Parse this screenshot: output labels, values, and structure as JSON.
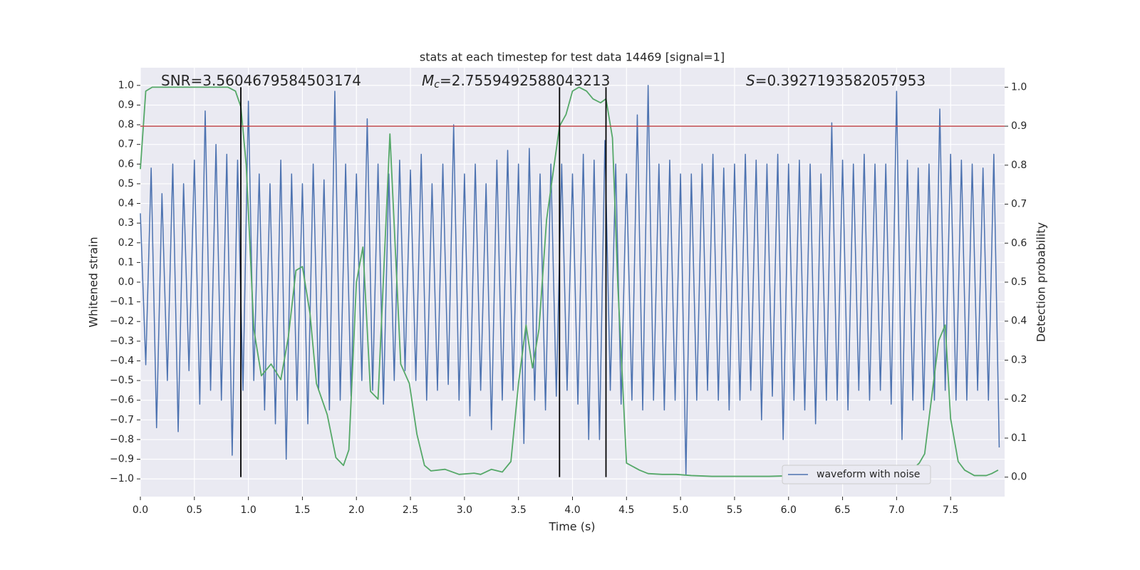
{
  "chart_data": {
    "type": "line",
    "title": "stats at each timestep for test data 14469 [signal=1]",
    "xlabel": "Time (s)",
    "ylabel": "Whitened strain",
    "y2label": "Detection probability",
    "xlim": [
      0,
      8
    ],
    "xticks": [
      {
        "value": 0,
        "label": "0.0"
      },
      0.5,
      {
        "value": 1,
        "label": "1.0"
      },
      1.5,
      {
        "value": 2,
        "label": "2.0"
      },
      2.5,
      {
        "value": 3,
        "label": "3.0"
      },
      3.5,
      {
        "value": 4,
        "label": "4.0"
      },
      4.5,
      {
        "value": 5,
        "label": "5.0"
      },
      5.5,
      {
        "value": 6,
        "label": "6.0"
      },
      6.5,
      {
        "value": 7,
        "label": "7.0"
      },
      7.5
    ],
    "ylim": [
      -1.09,
      1.09
    ],
    "yticks": [
      {
        "value": -1,
        "label": "−1.0"
      },
      {
        "value": -0.9,
        "label": "−0.9"
      },
      {
        "value": -0.8,
        "label": "−0.8"
      },
      {
        "value": -0.7,
        "label": "−0.7"
      },
      {
        "value": -0.6,
        "label": "−0.6"
      },
      {
        "value": -0.5,
        "label": "−0.5"
      },
      {
        "value": -0.4,
        "label": "−0.4"
      },
      {
        "value": -0.3,
        "label": "−0.3"
      },
      {
        "value": -0.2,
        "label": "−0.2"
      },
      {
        "value": -0.1,
        "label": "−0.1"
      },
      {
        "value": 0,
        "label": "0.0"
      },
      0.1,
      0.2,
      0.3,
      0.4,
      0.5,
      0.6,
      0.7,
      0.8,
      0.9,
      {
        "value": 1,
        "label": "1.0"
      }
    ],
    "y2lim": [
      -0.05,
      1.05
    ],
    "y2ticks": [
      {
        "value": 0,
        "label": "0.0"
      },
      0.1,
      0.2,
      0.3,
      0.4,
      0.5,
      0.6,
      0.7,
      0.8,
      0.9,
      {
        "value": 1,
        "label": "1.0"
      }
    ],
    "grid": true,
    "legend": "lower right",
    "series": [
      {
        "name": "waveform with noise",
        "color": "#4c72b0",
        "x": [
          0,
          0.05,
          0.1,
          0.15,
          0.2,
          0.25,
          0.3,
          0.35,
          0.4,
          0.45,
          0.5,
          0.55,
          0.6,
          0.65,
          0.7,
          0.75,
          0.8,
          0.85,
          0.9,
          0.95,
          1,
          1.05,
          1.1,
          1.15,
          1.2,
          1.25,
          1.3,
          1.35,
          1.4,
          1.45,
          1.5,
          1.55,
          1.6,
          1.65,
          1.7,
          1.75,
          1.8,
          1.85,
          1.9,
          1.95,
          2,
          2.05,
          2.1,
          2.15,
          2.2,
          2.25,
          2.3,
          2.35,
          2.4,
          2.45,
          2.5,
          2.55,
          2.6,
          2.65,
          2.7,
          2.75,
          2.8,
          2.85,
          2.9,
          2.95,
          3,
          3.05,
          3.1,
          3.15,
          3.2,
          3.25,
          3.3,
          3.35,
          3.4,
          3.45,
          3.5,
          3.55,
          3.6,
          3.65,
          3.7,
          3.75,
          3.8,
          3.85,
          3.9,
          3.95,
          4,
          4.05,
          4.1,
          4.15,
          4.2,
          4.25,
          4.3,
          4.35,
          4.4,
          4.45,
          4.5,
          4.55,
          4.6,
          4.65,
          4.7,
          4.75,
          4.8,
          4.85,
          4.9,
          4.95,
          5,
          5.05,
          5.1,
          5.15,
          5.2,
          5.25,
          5.3,
          5.35,
          5.4,
          5.45,
          5.5,
          5.55,
          5.6,
          5.65,
          5.7,
          5.75,
          5.8,
          5.85,
          5.9,
          5.95,
          6,
          6.05,
          6.1,
          6.15,
          6.2,
          6.25,
          6.3,
          6.35,
          6.4,
          6.45,
          6.5,
          6.55,
          6.6,
          6.65,
          6.7,
          6.75,
          6.8,
          6.85,
          6.9,
          6.95,
          7,
          7.05,
          7.1,
          7.15,
          7.2,
          7.25,
          7.3,
          7.35,
          7.4,
          7.45,
          7.5,
          7.55,
          7.6,
          7.65,
          7.7,
          7.75,
          7.8,
          7.85,
          7.9,
          7.95
        ],
        "values": [
          0.35,
          -0.42,
          0.58,
          -0.74,
          0.45,
          -0.5,
          0.6,
          -0.76,
          0.5,
          -0.45,
          0.62,
          -0.62,
          0.87,
          -0.55,
          0.7,
          -0.6,
          0.65,
          -0.88,
          0.62,
          -0.55,
          0.92,
          -0.5,
          0.55,
          -0.65,
          0.5,
          -0.72,
          0.62,
          -0.9,
          0.55,
          -0.6,
          0.5,
          -0.72,
          0.6,
          -0.55,
          0.52,
          -0.65,
          0.97,
          -0.6,
          0.6,
          -0.58,
          0.55,
          -0.5,
          0.83,
          -0.55,
          0.6,
          -0.62,
          0.55,
          -0.5,
          0.62,
          -0.45,
          0.57,
          -0.5,
          0.65,
          -0.6,
          0.5,
          -0.55,
          0.6,
          -0.52,
          0.8,
          -0.6,
          0.55,
          -0.68,
          0.6,
          -0.55,
          0.5,
          -0.75,
          0.62,
          -0.6,
          0.67,
          -0.55,
          0.6,
          -0.82,
          0.68,
          -0.6,
          0.55,
          -0.65,
          0.6,
          -0.58,
          0.6,
          -0.55,
          0.55,
          -0.62,
          0.65,
          -0.8,
          0.62,
          -0.8,
          0.72,
          -0.55,
          0.6,
          -0.62,
          0.55,
          -0.6,
          0.85,
          -0.65,
          1.0,
          -0.6,
          0.6,
          -0.65,
          0.62,
          -0.6,
          0.55,
          -0.98,
          0.55,
          -0.6,
          0.6,
          -0.55,
          0.65,
          -0.6,
          0.58,
          -0.65,
          0.6,
          -0.6,
          0.65,
          -0.55,
          0.62,
          -0.7,
          0.6,
          -0.58,
          0.65,
          -0.8,
          0.6,
          -0.6,
          0.62,
          -0.65,
          0.6,
          -0.72,
          0.55,
          -0.6,
          0.81,
          -0.6,
          0.62,
          -0.65,
          0.6,
          -0.55,
          0.65,
          -0.6,
          0.6,
          -0.55,
          0.6,
          -0.62,
          0.97,
          -0.8,
          0.62,
          -0.6,
          0.58,
          -0.65,
          0.6,
          -0.6,
          0.88,
          -0.55,
          0.65,
          -0.6,
          0.62,
          -0.6,
          0.6,
          -0.55,
          0.58,
          -0.6,
          0.65,
          -0.84
        ]
      },
      {
        "color": "#55a868",
        "axis": "y2",
        "x": [
          0,
          0.05,
          0.11,
          0.81,
          0.88,
          0.93,
          0.98,
          1.05,
          1.12,
          1.21,
          1.3,
          1.37,
          1.44,
          1.5,
          1.57,
          1.63,
          1.73,
          1.81,
          1.88,
          1.93,
          2,
          2.06,
          2.13,
          2.2,
          2.31,
          2.41,
          2.49,
          2.56,
          2.63,
          2.69,
          2.82,
          2.95,
          3.09,
          3.15,
          3.25,
          3.35,
          3.43,
          3.5,
          3.57,
          3.63,
          3.69,
          3.76,
          3.88,
          3.94,
          4,
          4.06,
          4.13,
          4.19,
          4.26,
          4.31,
          4.37,
          4.42,
          4.5,
          4.62,
          4.7,
          4.83,
          4.96,
          5.1,
          5.29,
          5.82,
          6.08,
          6.28,
          6.38,
          6.51,
          6.94,
          7.04,
          7.14,
          7.21,
          7.26,
          7.3,
          7.39,
          7.45,
          7.5,
          7.57,
          7.63,
          7.72,
          7.83,
          7.88,
          7.94
        ],
        "values": [
          0.79,
          0.99,
          1.0,
          1.0,
          0.99,
          0.95,
          0.8,
          0.38,
          0.26,
          0.29,
          0.25,
          0.36,
          0.53,
          0.54,
          0.42,
          0.24,
          0.16,
          0.05,
          0.03,
          0.07,
          0.5,
          0.59,
          0.22,
          0.2,
          0.88,
          0.29,
          0.24,
          0.11,
          0.03,
          0.016,
          0.02,
          0.007,
          0.01,
          0.007,
          0.02,
          0.013,
          0.04,
          0.24,
          0.39,
          0.28,
          0.38,
          0.66,
          0.9,
          0.93,
          0.99,
          1.0,
          0.99,
          0.97,
          0.96,
          0.97,
          0.87,
          0.49,
          0.036,
          0.018,
          0.009,
          0.007,
          0.007,
          0.004,
          0.002,
          0.002,
          0.004,
          0.004,
          0.005,
          0.002,
          0.002,
          0.005,
          0.018,
          0.036,
          0.06,
          0.15,
          0.35,
          0.39,
          0.15,
          0.04,
          0.018,
          0.004,
          0.004,
          0.009,
          0.018
        ]
      }
    ],
    "threshold": {
      "value": 0.9,
      "axis": "y2",
      "color": "#c44e52"
    },
    "vlines": {
      "x": [
        0.93,
        3.88,
        4.31
      ],
      "color": "#000000"
    },
    "annotations": [
      {
        "text": "SNR=3.5604679584503174"
      },
      {
        "symbol": "M",
        "subscript": "c",
        "text": "=2.7559492588043213"
      },
      {
        "symbol": "S",
        "text": "=0.3927193582057953"
      }
    ]
  }
}
